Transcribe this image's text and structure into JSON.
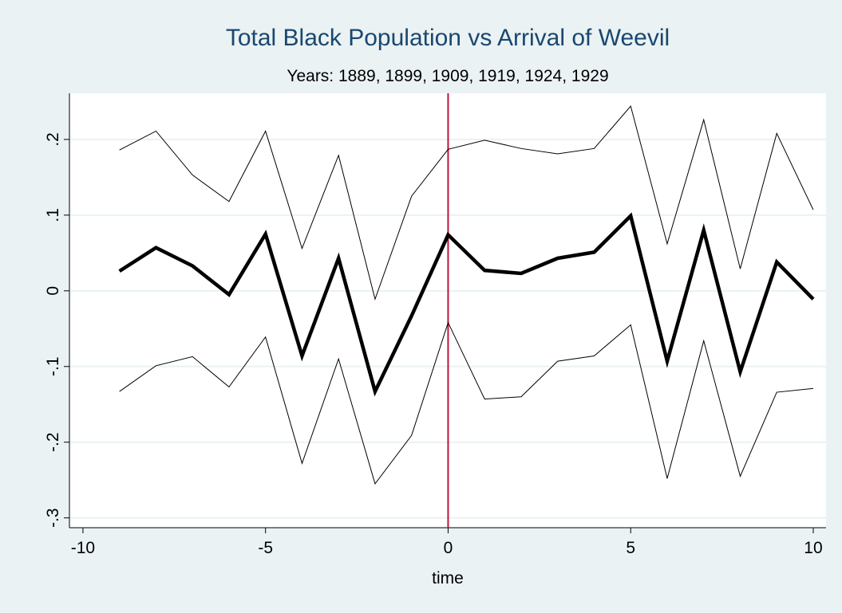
{
  "chart_data": {
    "type": "line",
    "title": "Total Black Population vs Arrival of Weevil",
    "subtitle": "Years: 1889, 1899, 1909, 1919, 1924, 1929",
    "x_label": "time",
    "x": [
      -9,
      -8,
      -7,
      -6,
      -5,
      -4,
      -3,
      -2,
      -1,
      0,
      1,
      2,
      3,
      4,
      5,
      6,
      7,
      8,
      9,
      10
    ],
    "series": [
      {
        "color": "#000000",
        "line_width": 1,
        "values": [
          0.186,
          0.211,
          0.153,
          0.118,
          0.211,
          0.056,
          0.179,
          -0.011,
          0.125,
          0.187,
          0.199,
          0.188,
          0.181,
          0.188,
          0.244,
          0.062,
          0.226,
          0.029,
          0.208,
          0.107
        ]
      },
      {
        "color": "#000000",
        "line_width": 4.5,
        "values": [
          0.026,
          0.057,
          0.033,
          -0.005,
          0.075,
          -0.086,
          0.043,
          -0.133,
          -0.033,
          0.074,
          0.027,
          0.023,
          0.043,
          0.051,
          0.099,
          -0.093,
          0.08,
          -0.107,
          0.038,
          -0.011
        ]
      },
      {
        "color": "#000000",
        "line_width": 1,
        "values": [
          -0.133,
          -0.099,
          -0.087,
          -0.127,
          -0.061,
          -0.228,
          -0.09,
          -0.255,
          -0.191,
          -0.042,
          -0.143,
          -0.14,
          -0.093,
          -0.086,
          -0.045,
          -0.248,
          -0.066,
          -0.245,
          -0.134,
          -0.129
        ]
      }
    ],
    "xlim": [
      -10.37,
      10.35
    ],
    "ylim": [
      -0.313,
      0.261
    ],
    "xticks": [
      -10,
      -5,
      0,
      5,
      10
    ],
    "yticks": [
      {
        "value": -0.3,
        "label": "-.3"
      },
      {
        "value": -0.2,
        "label": "-.2"
      },
      {
        "value": -0.1,
        "label": "-.1"
      },
      0,
      {
        "value": 0.1,
        "label": ".1"
      },
      {
        "value": 0.2,
        "label": ".2"
      }
    ],
    "grid": true,
    "vline": {
      "x": 0,
      "color": "#c0143c"
    }
  }
}
